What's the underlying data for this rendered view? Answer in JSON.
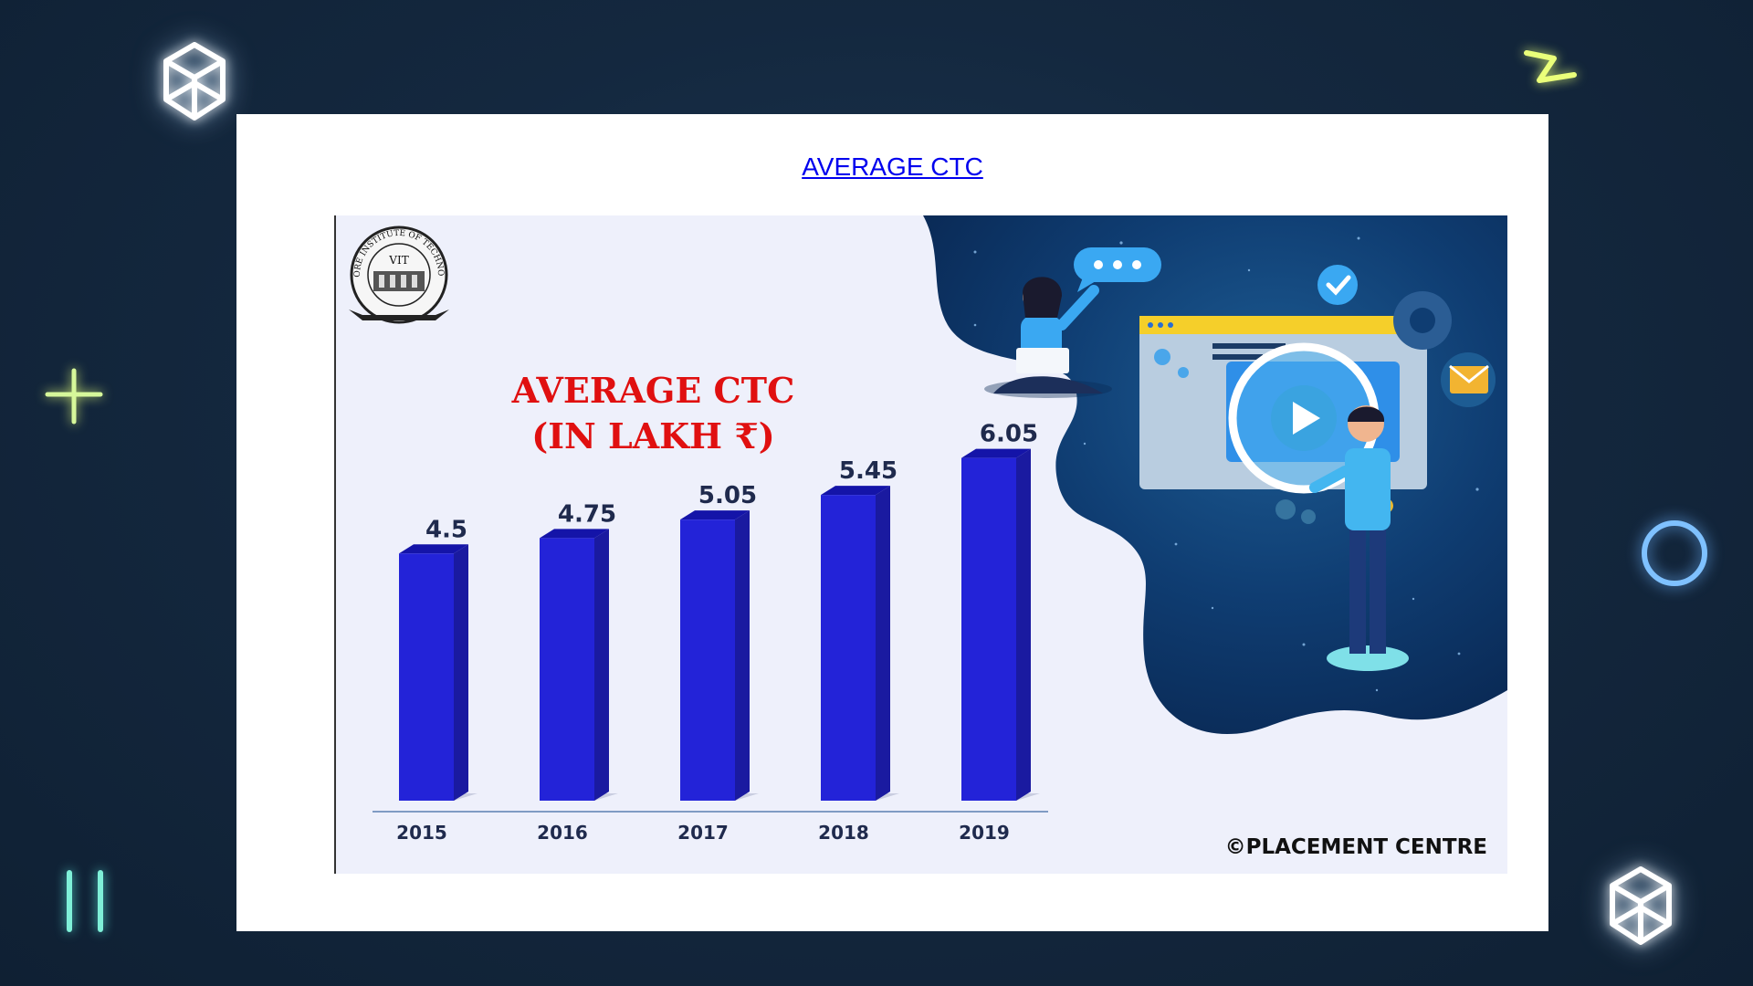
{
  "page": {
    "title": "AVERAGE CTC"
  },
  "poster": {
    "emblem": {
      "arc_text": "VELLORE INSTITUTE OF TECHNOLOGY",
      "center_text": "VIT"
    },
    "copyright": "©PLACEMENT CENTRE"
  },
  "chart_data": {
    "type": "bar",
    "title": "AVERAGE CTC",
    "subtitle": "(IN LAKH ₹)",
    "categories": [
      "2015",
      "2016",
      "2017",
      "2018",
      "2019"
    ],
    "values": [
      4.5,
      4.75,
      5.05,
      5.45,
      6.05
    ],
    "data_labels": [
      "4.5",
      "4.75",
      "5.05",
      "5.45",
      "6.05"
    ],
    "xlabel": "",
    "ylabel": "",
    "grid": false,
    "legend": "none",
    "bar_color": "#2323d8",
    "title_color": "#e01010"
  },
  "colors": {
    "background": "#14283f",
    "card": "#ffffff",
    "link": "#0000ee",
    "poster_bg": "#eef0fb",
    "bar_front": "#2323d8",
    "bar_side": "#1a1aa0",
    "bar_top": "#1414a8",
    "label": "#1f2a4d"
  }
}
